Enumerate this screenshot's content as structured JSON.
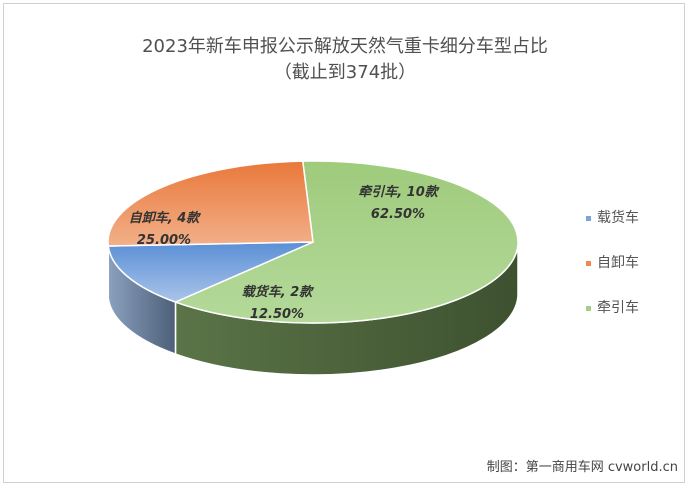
{
  "chart_data": {
    "type": "pie",
    "title_line1": "2023年新车申报公示解放天然气重卡细分车型占比",
    "title_line2": "（截止到374批）",
    "slices": [
      {
        "name": "载货车",
        "count_label": "载货车, 2款",
        "percent_label": "12.50%",
        "value": 2,
        "percent": 12.5,
        "color": "#7da4d8"
      },
      {
        "name": "自卸车",
        "count_label": "自卸车, 4款",
        "percent_label": "25.00%",
        "value": 4,
        "percent": 25.0,
        "color": "#ec8a54"
      },
      {
        "name": "牵引车",
        "count_label": "牵引车, 10款",
        "percent_label": "62.50%",
        "value": 10,
        "percent": 62.5,
        "color": "#a6cf86"
      }
    ],
    "legend": [
      "载货车",
      "自卸车",
      "牵引车"
    ],
    "legend_placement": "right"
  },
  "source_text": "制图：第一商用车网 cvworld.cn"
}
